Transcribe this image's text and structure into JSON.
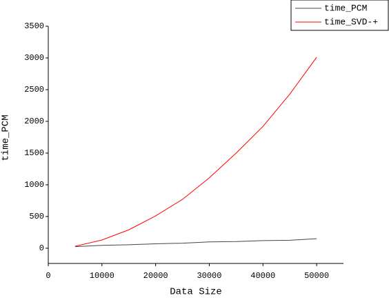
{
  "chart_data": {
    "type": "line",
    "x_label": "Data Size",
    "y_label": "time_PCM",
    "x": [
      5000,
      10000,
      15000,
      20000,
      25000,
      30000,
      35000,
      40000,
      45000,
      50000
    ],
    "series": [
      {
        "name": "time_PCM",
        "color": "#444444",
        "values": [
          25,
          45,
          55,
          70,
          80,
          100,
          105,
          120,
          125,
          150
        ]
      },
      {
        "name": "time_SVD-+",
        "color": "#ff0000",
        "values": [
          30,
          130,
          290,
          510,
          770,
          1110,
          1500,
          1920,
          2430,
          3010
        ]
      }
    ],
    "xlim": [
      0,
      55000
    ],
    "xticks": [
      0,
      10000,
      20000,
      30000,
      40000,
      50000
    ],
    "ylim": [
      -240,
      3500
    ],
    "yticks": [
      0,
      500,
      1000,
      1500,
      2000,
      2500,
      3000,
      3500
    ],
    "legend": "upper right"
  }
}
